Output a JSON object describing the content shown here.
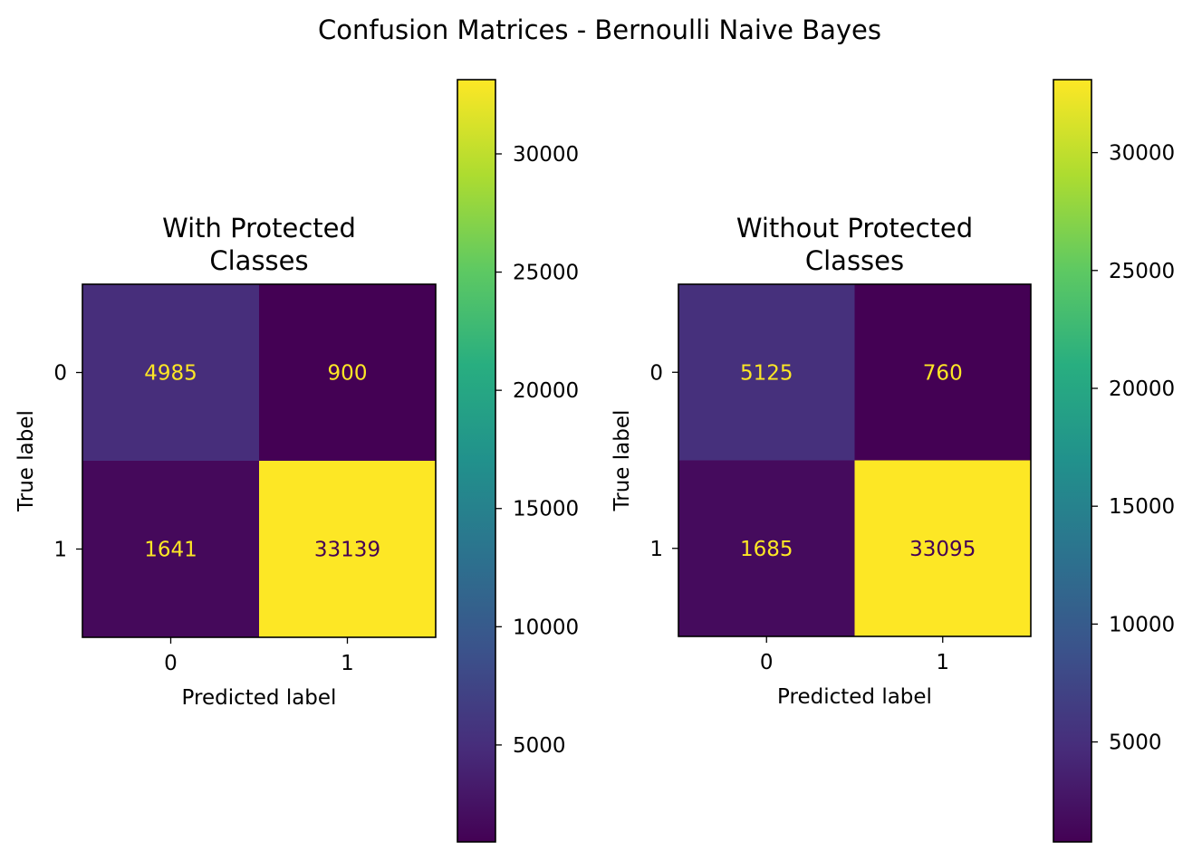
{
  "figure": {
    "suptitle": "Confusion Matrices - Bernoulli Naive Bayes"
  },
  "chart_data": [
    {
      "type": "heatmap",
      "title": "With Protected Classes",
      "title_lines": [
        "With Protected",
        "Classes"
      ],
      "xlabel": "Predicted label",
      "ylabel": "True label",
      "x_ticks": [
        "0",
        "1"
      ],
      "y_ticks": [
        "0",
        "1"
      ],
      "matrix": [
        [
          4985,
          900
        ],
        [
          1641,
          33139
        ]
      ],
      "cell_labels": [
        [
          "4985",
          "900"
        ],
        [
          "1641",
          "33139"
        ]
      ],
      "colormap": "viridis",
      "colorbar": {
        "range": [
          900,
          33139
        ],
        "ticks": [
          5000,
          10000,
          15000,
          20000,
          25000,
          30000
        ],
        "tick_labels": [
          "5000",
          "10000",
          "15000",
          "20000",
          "25000",
          "30000"
        ]
      },
      "grid": false
    },
    {
      "type": "heatmap",
      "title": "Without Protected Classes",
      "title_lines": [
        "Without Protected",
        "Classes"
      ],
      "xlabel": "Predicted label",
      "ylabel": "True label",
      "x_ticks": [
        "0",
        "1"
      ],
      "y_ticks": [
        "0",
        "1"
      ],
      "matrix": [
        [
          5125,
          760
        ],
        [
          1685,
          33095
        ]
      ],
      "cell_labels": [
        [
          "5125",
          "760"
        ],
        [
          "1685",
          "33095"
        ]
      ],
      "colormap": "viridis",
      "colorbar": {
        "range": [
          760,
          33095
        ],
        "ticks": [
          5000,
          10000,
          15000,
          20000,
          25000,
          30000
        ],
        "tick_labels": [
          "5000",
          "10000",
          "15000",
          "20000",
          "25000",
          "30000"
        ]
      },
      "grid": false
    }
  ],
  "colors": {
    "text_light": "#fde725",
    "text_dark": "#440154"
  }
}
